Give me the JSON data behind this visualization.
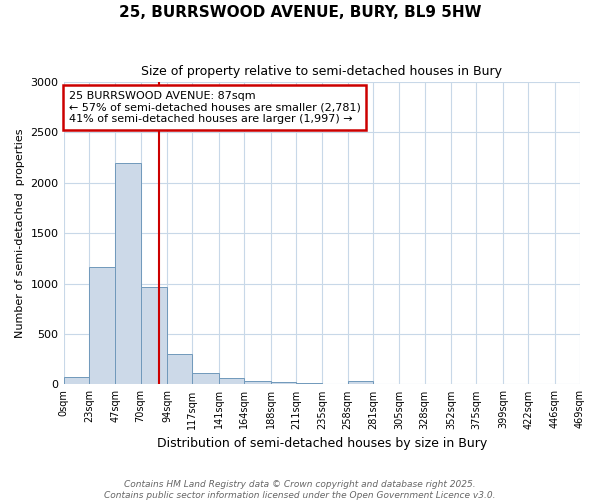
{
  "title": "25, BURRSWOOD AVENUE, BURY, BL9 5HW",
  "subtitle": "Size of property relative to semi-detached houses in Bury",
  "xlabel": "Distribution of semi-detached houses by size in Bury",
  "ylabel": "Number of semi-detached  properties",
  "bin_edges": [
    0,
    23,
    47,
    70,
    94,
    117,
    141,
    164,
    188,
    211,
    235,
    258,
    281,
    305,
    328,
    352,
    375,
    399,
    422,
    446,
    469
  ],
  "bin_counts": [
    70,
    1160,
    2200,
    970,
    305,
    110,
    60,
    35,
    20,
    10,
    5,
    30,
    0,
    0,
    0,
    0,
    0,
    0,
    0,
    0
  ],
  "bar_color": "#ccd9e8",
  "bar_edgecolor": "#7099bb",
  "property_size": 87,
  "vline_color": "#cc0000",
  "annotation_text": "25 BURRSWOOD AVENUE: 87sqm\n← 57% of semi-detached houses are smaller (2,781)\n41% of semi-detached houses are larger (1,997) →",
  "annotation_boxcolor": "white",
  "annotation_edgecolor": "#cc0000",
  "ylim": [
    0,
    3000
  ],
  "yticks": [
    0,
    500,
    1000,
    1500,
    2000,
    2500,
    3000
  ],
  "footer_line1": "Contains HM Land Registry data © Crown copyright and database right 2025.",
  "footer_line2": "Contains public sector information licensed under the Open Government Licence v3.0.",
  "background_color": "#ffffff",
  "grid_color": "#c8d8e8"
}
